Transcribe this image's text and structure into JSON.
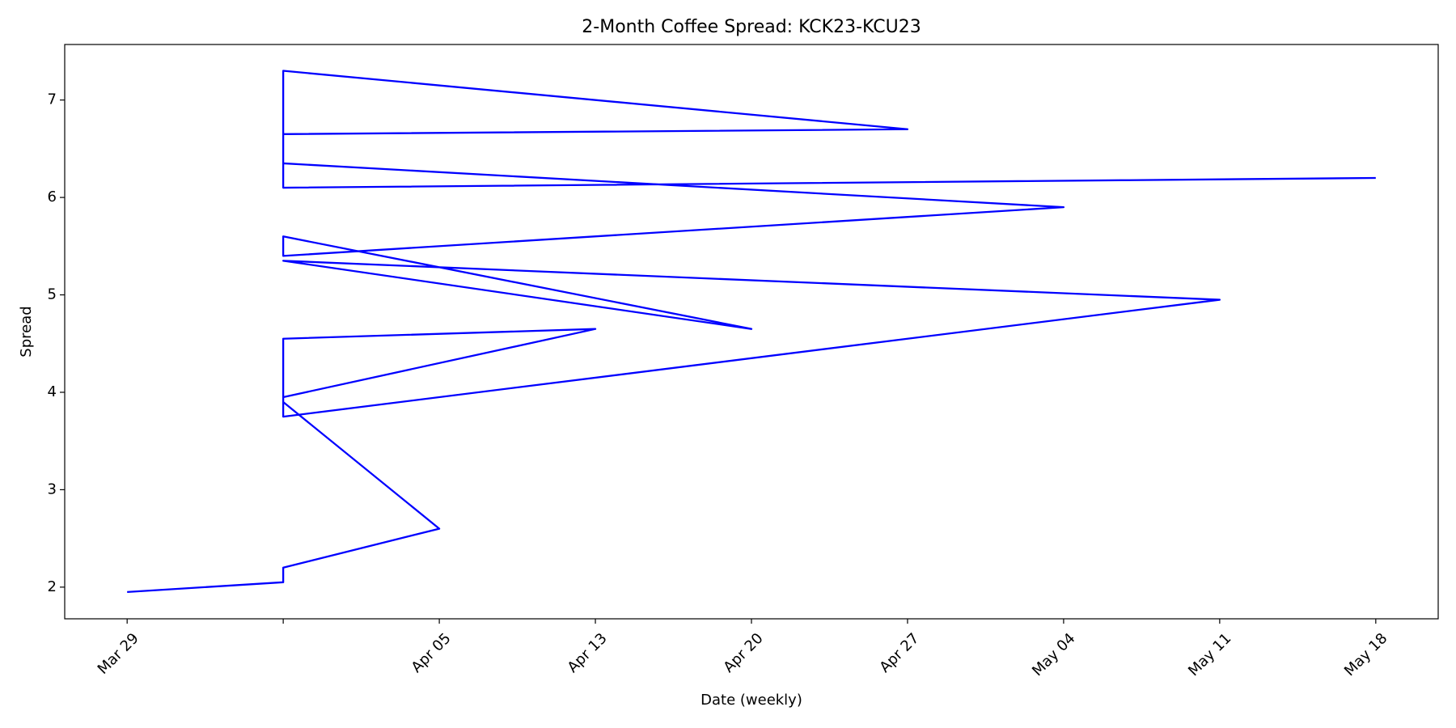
{
  "chart_data": {
    "type": "line",
    "title": "2-Month Coffee Spread: KCK23-KCU23",
    "xlabel": "Date (weekly)",
    "ylabel": "Spread",
    "x": [
      0,
      1,
      1,
      2,
      1,
      1,
      1,
      3,
      1,
      1,
      7,
      1,
      4,
      1,
      1,
      6,
      1,
      1,
      5,
      1,
      1,
      8
    ],
    "series": [
      {
        "name": "KCK23-KCU23",
        "color": "#0000ff",
        "values": [
          1.95,
          2.05,
          2.2,
          2.6,
          3.9,
          4.3,
          3.95,
          4.65,
          4.55,
          3.75,
          4.95,
          5.35,
          4.65,
          5.6,
          5.4,
          5.9,
          6.35,
          7.3,
          6.7,
          6.65,
          6.1,
          6.2
        ]
      }
    ],
    "xlim": [
      -0.4,
      8.4
    ],
    "xticks": [
      {
        "value": 0,
        "label": "Mar 29"
      },
      {
        "value": 1,
        "label": null
      },
      {
        "value": 2,
        "label": "Apr 05"
      },
      {
        "value": 3,
        "label": "Apr 13"
      },
      {
        "value": 4,
        "label": "Apr 20"
      },
      {
        "value": 5,
        "label": "Apr 27"
      },
      {
        "value": 6,
        "label": "May 04"
      },
      {
        "value": 7,
        "label": "May 11"
      },
      {
        "value": 8,
        "label": "May 18"
      }
    ],
    "ylim": [
      1.675,
      7.57
    ],
    "yticks": [
      2,
      3,
      4,
      5,
      6,
      7
    ],
    "grid": false
  }
}
